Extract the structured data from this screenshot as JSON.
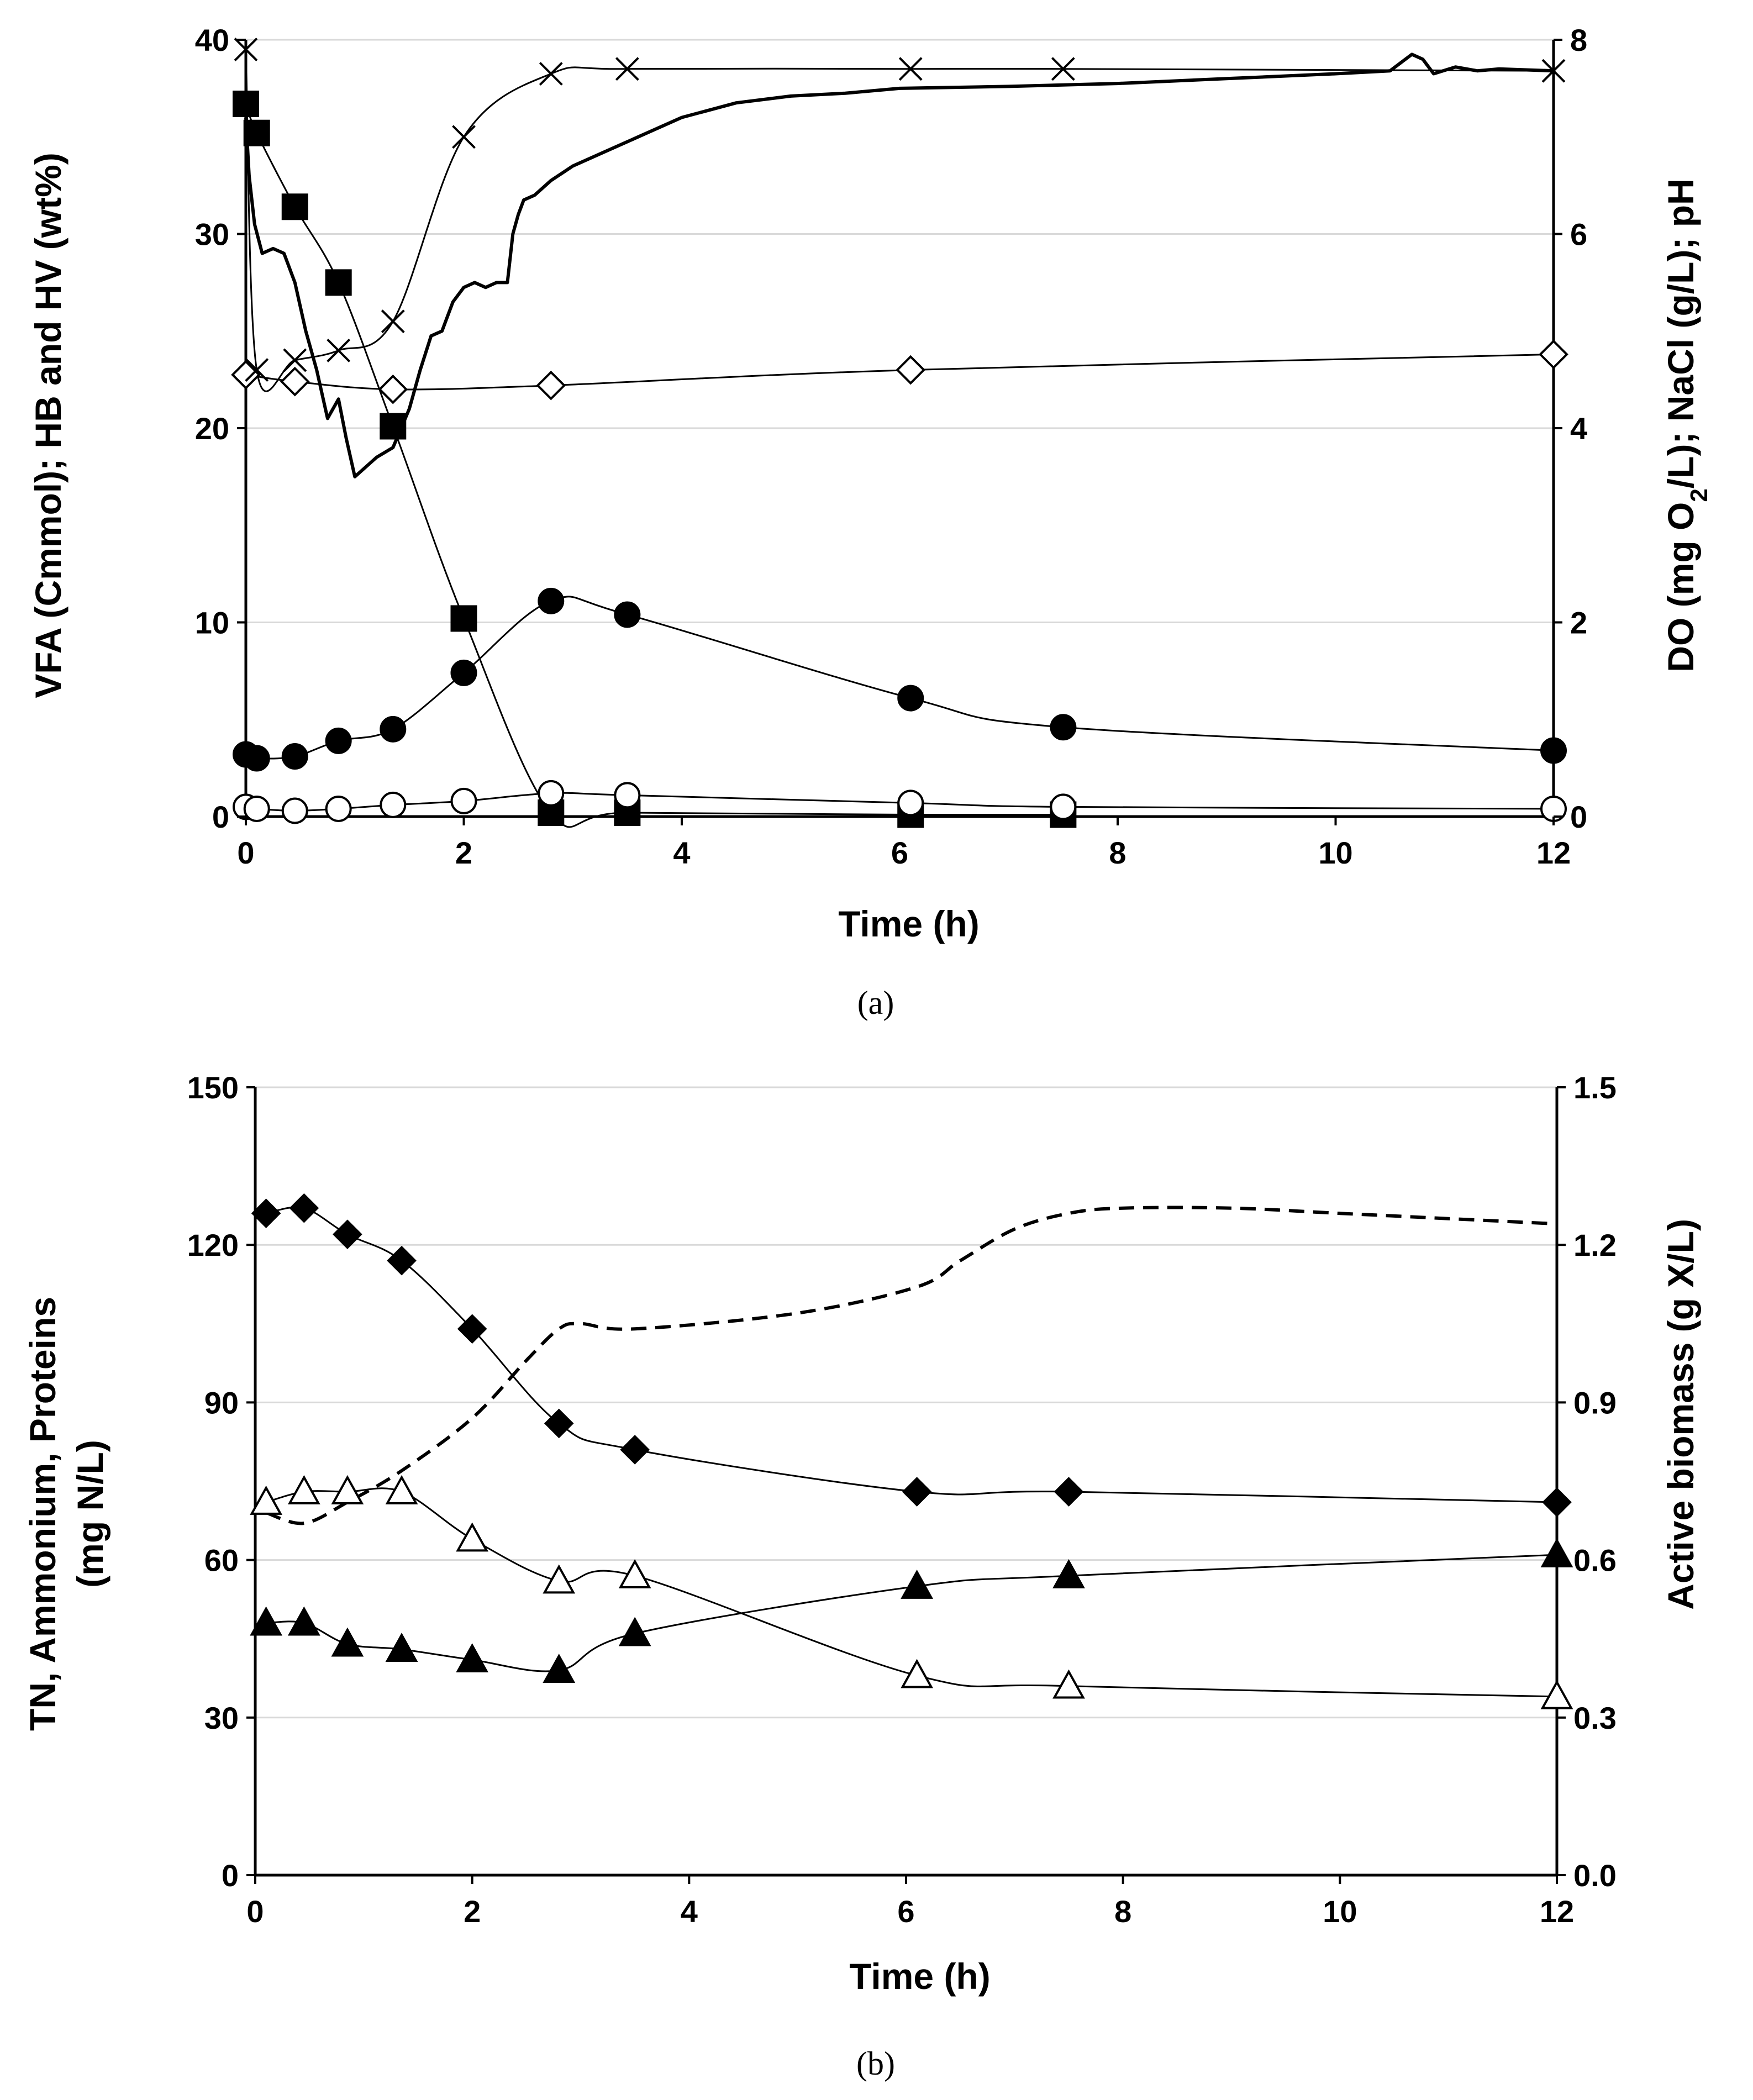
{
  "chart_data": [
    {
      "panel": "(a)",
      "type": "line",
      "title": "",
      "xlabel": "Time (h)",
      "ylabel_left": "VFA (Cmmol); HB and HV (wt%)",
      "ylabel_right_parts": [
        "DO (mg O",
        "2",
        "/L); NaCl (g/L); pH"
      ],
      "xlim": [
        0,
        12
      ],
      "ylim_left": [
        0,
        40
      ],
      "ylim_right": [
        0,
        8
      ],
      "x_ticks": [
        "0",
        "2",
        "4",
        "6",
        "8",
        "10",
        "12"
      ],
      "y_ticks_left": [
        "0",
        "10",
        "20",
        "30",
        "40"
      ],
      "y_ticks_right": [
        "0",
        "2",
        "4",
        "6",
        "8"
      ],
      "series": [
        {
          "name": "square-filled",
          "axis": "left",
          "marker": "square",
          "fill": "#000000",
          "x": [
            0.0,
            0.1,
            0.45,
            0.85,
            1.35,
            2.0,
            2.8,
            3.5,
            6.1,
            7.5
          ],
          "y": [
            36.7,
            35.2,
            31.4,
            27.5,
            20.1,
            10.2,
            0.2,
            0.2,
            0.1,
            0.1
          ]
        },
        {
          "name": "circle-filled",
          "axis": "left",
          "marker": "circle",
          "fill": "#000000",
          "x": [
            0.0,
            0.1,
            0.45,
            0.85,
            1.35,
            2.0,
            2.8,
            3.5,
            6.1,
            7.5,
            12.0
          ],
          "y": [
            3.2,
            3.0,
            3.1,
            3.9,
            4.5,
            7.4,
            11.1,
            10.4,
            6.1,
            4.6,
            3.4
          ]
        },
        {
          "name": "circle-open",
          "axis": "left",
          "marker": "circle",
          "fill": "#ffffff",
          "x": [
            0.0,
            0.1,
            0.45,
            0.85,
            1.35,
            2.0,
            2.8,
            3.5,
            6.1,
            7.5,
            12.0
          ],
          "y": [
            0.5,
            0.4,
            0.3,
            0.4,
            0.6,
            0.8,
            1.2,
            1.1,
            0.7,
            0.5,
            0.4
          ]
        },
        {
          "name": "diamond-open",
          "axis": "right",
          "marker": "diamond",
          "fill": "#ffffff",
          "x": [
            0.0,
            0.45,
            1.35,
            2.8,
            6.1,
            12.0
          ],
          "y": [
            4.55,
            4.48,
            4.4,
            4.44,
            4.6,
            4.76
          ]
        },
        {
          "name": "x-marker",
          "axis": "right",
          "marker": "x",
          "fill": "none",
          "x": [
            0.0,
            0.1,
            0.45,
            0.85,
            1.35,
            2.0,
            2.8,
            3.5,
            6.1,
            7.5,
            12.0
          ],
          "y": [
            7.9,
            4.6,
            4.7,
            4.8,
            5.1,
            7.0,
            7.65,
            7.7,
            7.7,
            7.7,
            7.68
          ]
        },
        {
          "name": "DO-continuous",
          "axis": "right",
          "marker": "none",
          "stroke_width": 6,
          "curve": "linear",
          "x": [
            0.0,
            0.03,
            0.08,
            0.15,
            0.25,
            0.35,
            0.45,
            0.55,
            0.65,
            0.75,
            0.85,
            0.92,
            1.0,
            1.1,
            1.2,
            1.35,
            1.5,
            1.6,
            1.7,
            1.8,
            1.9,
            2.0,
            2.1,
            2.2,
            2.3,
            2.4,
            2.45,
            2.5,
            2.55,
            2.65,
            2.8,
            3.0,
            3.3,
            3.6,
            4.0,
            4.5,
            5.0,
            5.5,
            6.0,
            7.0,
            8.0,
            9.0,
            10.0,
            10.5,
            10.7,
            10.8,
            10.9,
            11.1,
            11.2,
            11.3,
            11.5,
            12.0
          ],
          "y": [
            7.2,
            6.6,
            6.1,
            5.8,
            5.85,
            5.8,
            5.5,
            5.0,
            4.6,
            4.1,
            4.3,
            3.9,
            3.5,
            3.6,
            3.7,
            3.8,
            4.2,
            4.6,
            4.95,
            5.0,
            5.3,
            5.45,
            5.5,
            5.45,
            5.5,
            5.5,
            6.0,
            6.2,
            6.35,
            6.4,
            6.55,
            6.7,
            6.85,
            7.0,
            7.2,
            7.35,
            7.42,
            7.45,
            7.5,
            7.52,
            7.55,
            7.6,
            7.65,
            7.68,
            7.85,
            7.8,
            7.65,
            7.72,
            7.7,
            7.68,
            7.7,
            7.68
          ]
        }
      ]
    },
    {
      "panel": "(b)",
      "type": "line",
      "title": "",
      "xlabel": "Time (h)",
      "ylabel_left_lines": [
        "TN, Ammonium, Proteins",
        "(mg N/L)"
      ],
      "ylabel_right": "Active biomass (g X/L)",
      "xlim": [
        0,
        12
      ],
      "ylim_left": [
        0,
        150
      ],
      "ylim_right": [
        0,
        1.5
      ],
      "x_ticks": [
        "0",
        "2",
        "4",
        "6",
        "8",
        "10",
        "12"
      ],
      "y_ticks_left": [
        "0",
        "30",
        "60",
        "90",
        "120",
        "150"
      ],
      "y_ticks_right": [
        "0.0",
        "0.3",
        "0.6",
        "0.9",
        "1.2",
        "1.5"
      ],
      "series": [
        {
          "name": "diamond-filled",
          "axis": "left",
          "marker": "diamond",
          "fill": "#000000",
          "x": [
            0.1,
            0.45,
            0.85,
            1.35,
            2.0,
            2.8,
            3.5,
            6.1,
            7.5,
            12.0
          ],
          "y": [
            126,
            127,
            122,
            117,
            104,
            86,
            81,
            73,
            73,
            71
          ]
        },
        {
          "name": "triangle-open",
          "axis": "left",
          "marker": "triangle",
          "fill": "#ffffff",
          "x": [
            0.1,
            0.45,
            0.85,
            1.35,
            2.0,
            2.8,
            3.5,
            6.1,
            7.5,
            12.0
          ],
          "y": [
            71,
            73,
            73,
            73,
            64,
            56,
            57,
            38,
            36,
            34
          ]
        },
        {
          "name": "triangle-filled",
          "axis": "left",
          "marker": "triangle",
          "fill": "#000000",
          "x": [
            0.1,
            0.45,
            0.85,
            1.35,
            2.0,
            2.8,
            3.5,
            6.1,
            7.5,
            12.0
          ],
          "y": [
            48,
            48,
            44,
            43,
            41,
            39,
            46,
            55,
            57,
            61
          ]
        },
        {
          "name": "active-biomass-dashed",
          "axis": "right",
          "marker": "none",
          "dashed": true,
          "stroke_width": 6,
          "curve": "smooth",
          "x": [
            0.1,
            0.45,
            0.85,
            1.35,
            2.0,
            2.5,
            2.8,
            3.0,
            3.5,
            5.0,
            6.1,
            6.5,
            7.0,
            7.5,
            8.0,
            9.0,
            10.0,
            11.0,
            12.0
          ],
          "y": [
            0.69,
            0.67,
            0.71,
            0.77,
            0.87,
            0.98,
            1.04,
            1.05,
            1.04,
            1.07,
            1.12,
            1.17,
            1.23,
            1.26,
            1.27,
            1.27,
            1.26,
            1.25,
            1.24
          ]
        }
      ]
    }
  ]
}
